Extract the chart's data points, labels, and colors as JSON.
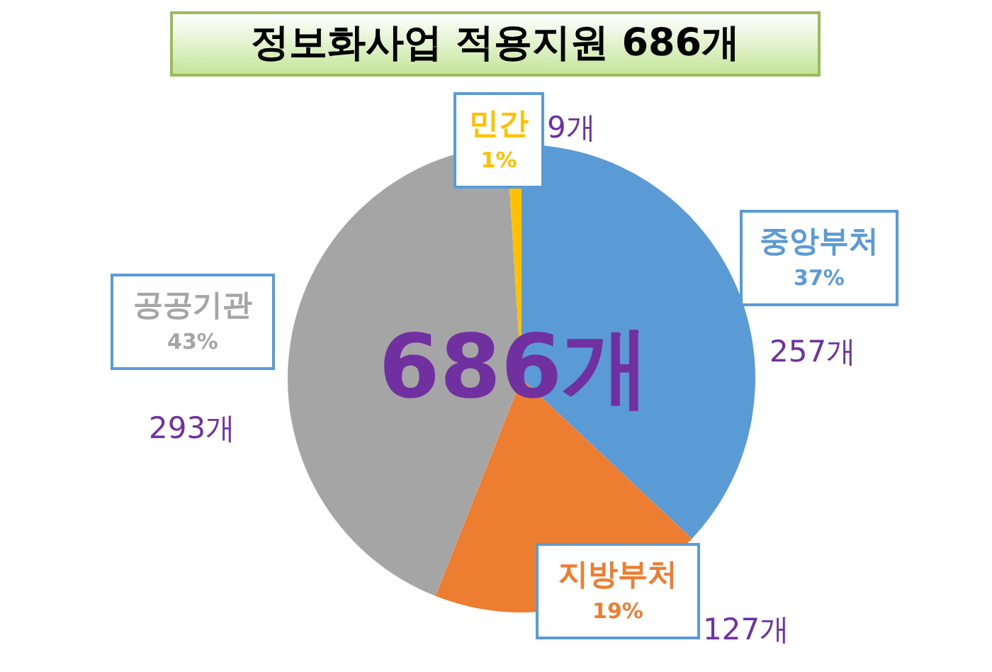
{
  "chart_data": {
    "type": "pie",
    "title": "정보화사업 적용지원 686개",
    "categories": [
      "중앙부처",
      "지방부처",
      "공공기관",
      "민간"
    ],
    "values": [
      37,
      19,
      43,
      1
    ],
    "colors": [
      "#5b9bd5",
      "#ed7d31",
      "#a5a5a5",
      "#ffc000"
    ],
    "value_labels": [
      "37%",
      "19%",
      "43%",
      "1%"
    ],
    "annotations": [
      "257개",
      "127개",
      "293개",
      "9개",
      "686개"
    ]
  }
}
